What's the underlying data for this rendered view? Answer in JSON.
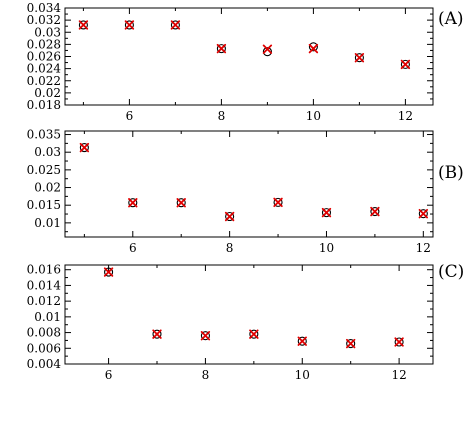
{
  "chart_data": [
    {
      "type": "scatter",
      "panel_label": "(A)",
      "xlim": [
        4.6,
        12.6
      ],
      "ylim": [
        0.018,
        0.034
      ],
      "x_major_ticks": [
        6,
        8,
        10,
        12
      ],
      "x_tick_labels": [
        "6",
        "8",
        "10",
        "12"
      ],
      "y_major_ticks": [
        0.018,
        0.02,
        0.022,
        0.024,
        0.026,
        0.028,
        0.03,
        0.032,
        0.034
      ],
      "y_tick_labels": [
        "0.018",
        "0.02",
        "0.022",
        "0.024",
        "0.026",
        "0.028",
        "0.03",
        "0.032",
        "0.034"
      ],
      "series": [
        {
          "marker": "circle",
          "color": "#000000",
          "x": [
            5,
            6,
            7,
            8,
            9,
            10,
            11,
            12
          ],
          "y": [
            0.0312,
            0.0312,
            0.0312,
            0.0273,
            0.0268,
            0.0276,
            0.0258,
            0.0247
          ]
        },
        {
          "marker": "x",
          "color": "#e00000",
          "x": [
            5,
            6,
            7,
            8,
            9,
            10,
            11,
            12
          ],
          "y": [
            0.0312,
            0.0312,
            0.0312,
            0.0273,
            0.0272,
            0.0273,
            0.0258,
            0.0247
          ]
        }
      ]
    },
    {
      "type": "scatter",
      "panel_label": "(B)",
      "xlim": [
        4.6,
        12.2
      ],
      "ylim": [
        0.006,
        0.036
      ],
      "x_major_ticks": [
        6,
        8,
        10,
        12
      ],
      "x_tick_labels": [
        "6",
        "8",
        "10",
        "12"
      ],
      "y_major_ticks": [
        0.01,
        0.015,
        0.02,
        0.025,
        0.03,
        0.035
      ],
      "y_tick_labels": [
        "0.01",
        "0.015",
        "0.02",
        "0.025",
        "0.03",
        "0.035"
      ],
      "series": [
        {
          "marker": "circle",
          "color": "#000000",
          "x": [
            5,
            6,
            7,
            8,
            9,
            10,
            11,
            12
          ],
          "y": [
            0.0313,
            0.0157,
            0.0157,
            0.0118,
            0.0158,
            0.0129,
            0.0132,
            0.0126
          ]
        },
        {
          "marker": "x",
          "color": "#e00000",
          "x": [
            5,
            6,
            7,
            8,
            9,
            10,
            11,
            12
          ],
          "y": [
            0.0313,
            0.0157,
            0.0157,
            0.0118,
            0.0158,
            0.0129,
            0.0132,
            0.0126
          ]
        }
      ]
    },
    {
      "type": "scatter",
      "panel_label": "(C)",
      "xlim": [
        5.1,
        12.7
      ],
      "ylim": [
        0.004,
        0.0166
      ],
      "x_major_ticks": [
        6,
        8,
        10,
        12
      ],
      "x_tick_labels": [
        "6",
        "8",
        "10",
        "12"
      ],
      "y_major_ticks": [
        0.004,
        0.006,
        0.008,
        0.01,
        0.012,
        0.014,
        0.016
      ],
      "y_tick_labels": [
        "0.004",
        "0.006",
        "0.008",
        "0.01",
        "0.012",
        "0.014",
        "0.016"
      ],
      "series": [
        {
          "marker": "circle",
          "color": "#000000",
          "x": [
            6,
            7,
            8,
            9,
            10,
            11,
            12
          ],
          "y": [
            0.0157,
            0.0078,
            0.0076,
            0.0078,
            0.0069,
            0.0066,
            0.0068
          ]
        },
        {
          "marker": "x",
          "color": "#e00000",
          "x": [
            6,
            7,
            8,
            9,
            10,
            11,
            12
          ],
          "y": [
            0.0157,
            0.0078,
            0.0076,
            0.0078,
            0.0069,
            0.0066,
            0.0068
          ]
        }
      ]
    }
  ]
}
